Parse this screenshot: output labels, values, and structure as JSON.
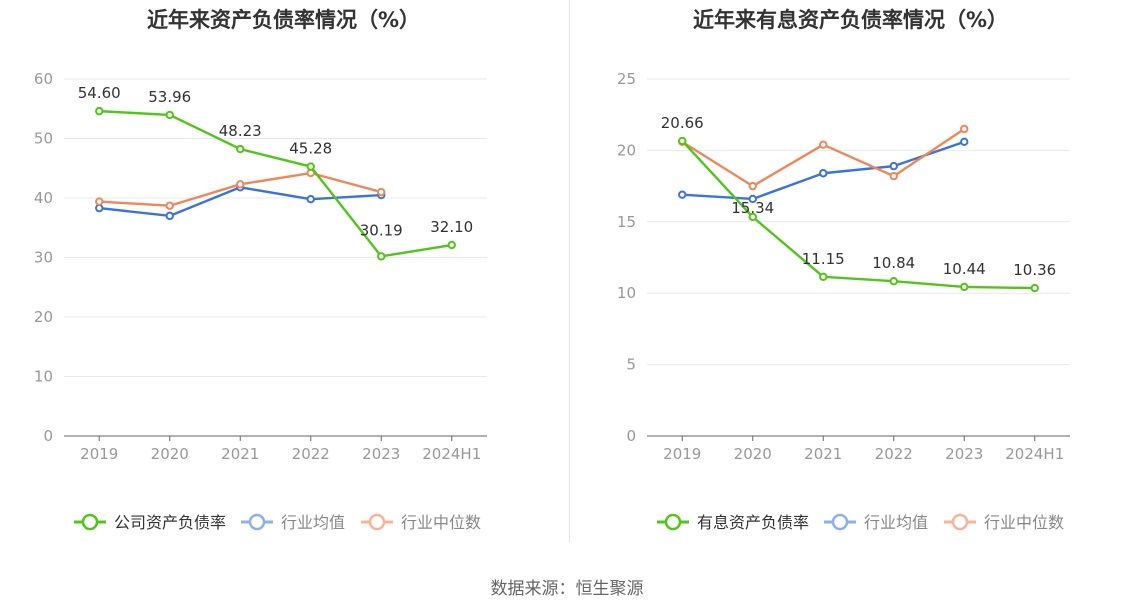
{
  "charts": [
    {
      "title": "近年来资产负债率情况（%）",
      "chart_data": {
        "type": "line",
        "categories": [
          "2019",
          "2020",
          "2021",
          "2022",
          "2023",
          "2024H1"
        ],
        "ylim": [
          0,
          60
        ],
        "yticks": [
          0,
          10,
          20,
          30,
          40,
          50,
          60
        ],
        "grid": true,
        "legend_position": "bottom",
        "series": [
          {
            "name": "公司资产负债率",
            "color": "#52c41a",
            "values": [
              54.6,
              53.96,
              48.23,
              45.28,
              30.19,
              32.1
            ],
            "labels": [
              "54.60",
              "53.96",
              "48.23",
              "45.28",
              "30.19",
              "32.10"
            ]
          },
          {
            "name": "行业均值",
            "color": "#3b73d9",
            "values": [
              38.3,
              37.0,
              41.8,
              39.8,
              40.5,
              null
            ]
          },
          {
            "name": "行业中位数",
            "color": "#f0875a",
            "values": [
              39.4,
              38.7,
              42.3,
              44.2,
              41.0,
              null
            ]
          }
        ]
      }
    },
    {
      "title": "近年来有息资产负债率情况（%）",
      "chart_data": {
        "type": "line",
        "categories": [
          "2019",
          "2020",
          "2021",
          "2022",
          "2023",
          "2024H1"
        ],
        "ylim": [
          0,
          25
        ],
        "yticks": [
          0,
          5,
          10,
          15,
          20,
          25
        ],
        "grid": true,
        "legend_position": "bottom",
        "series": [
          {
            "name": "有息资产负债率",
            "color": "#52c41a",
            "values": [
              20.66,
              15.34,
              11.15,
              10.84,
              10.44,
              10.36
            ],
            "labels": [
              "20.66",
              "15.34",
              "11.15",
              "10.84",
              "10.44",
              "10.36"
            ]
          },
          {
            "name": "行业均值",
            "color": "#3b73d9",
            "values": [
              16.9,
              16.6,
              18.4,
              18.9,
              20.6,
              null
            ]
          },
          {
            "name": "行业中位数",
            "color": "#f0875a",
            "values": [
              20.6,
              17.5,
              20.4,
              18.2,
              21.5,
              null
            ]
          }
        ]
      }
    }
  ],
  "source": "数据来源：恒生聚源"
}
